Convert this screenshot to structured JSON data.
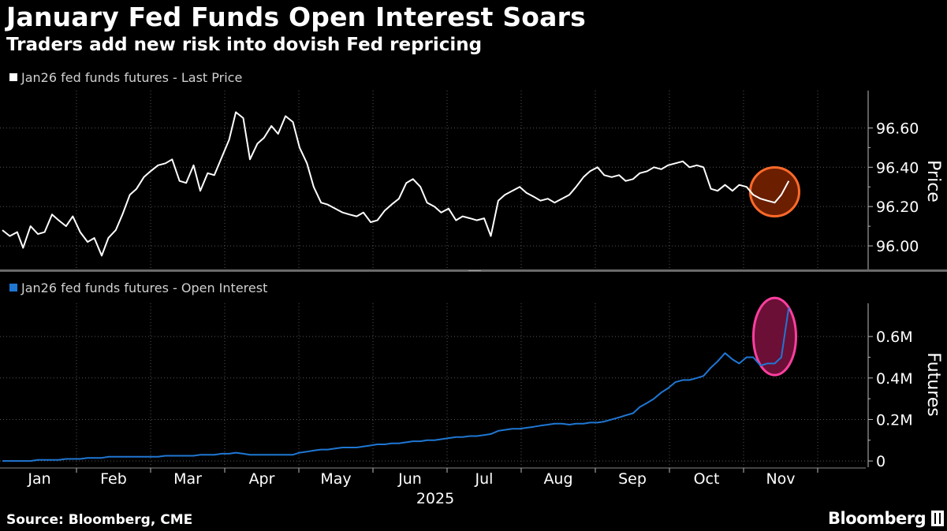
{
  "header": {
    "title": "January Fed Funds Open Interest Soars",
    "subtitle": "Traders add new risk into dovish Fed repricing"
  },
  "footer": {
    "source": "Source: Bloomberg, CME",
    "brand": "Bloomberg"
  },
  "colors": {
    "background": "#000000",
    "price_line": "#ffffff",
    "oi_line": "#1f77d4",
    "price_highlight_fill": "#6b1f00",
    "price_highlight_stroke": "#ff6a2a",
    "oi_highlight_fill": "#6b0f36",
    "oi_highlight_stroke": "#ff3fa0",
    "grid": "#555555"
  },
  "chart_data": [
    {
      "type": "line",
      "legend": "Jan26 fed funds futures - Last Price",
      "ylabel": "Price",
      "ylim": [
        95.88,
        96.79
      ],
      "yticks": [
        "96.00",
        "96.20",
        "96.40",
        "96.60"
      ],
      "ytick_values": [
        96.0,
        96.2,
        96.4,
        96.6
      ],
      "x_months": [
        "Jan",
        "Feb",
        "Mar",
        "Apr",
        "May",
        "Jun",
        "Jul",
        "Aug",
        "Sep",
        "Oct",
        "Nov"
      ],
      "x_year": "2025",
      "x": [
        0.0,
        0.1,
        0.2,
        0.28,
        0.38,
        0.48,
        0.57,
        0.67,
        0.76,
        0.86,
        0.95,
        1.05,
        1.15,
        1.24,
        1.34,
        1.43,
        1.53,
        1.62,
        1.72,
        1.81,
        1.91,
        2.0,
        2.1,
        2.2,
        2.29,
        2.39,
        2.48,
        2.58,
        2.67,
        2.77,
        2.86,
        2.96,
        3.06,
        3.15,
        3.25,
        3.34,
        3.44,
        3.53,
        3.63,
        3.72,
        3.82,
        3.92,
        4.01,
        4.11,
        4.2,
        4.3,
        4.39,
        4.49,
        4.59,
        4.68,
        4.78,
        4.87,
        4.97,
        5.06,
        5.16,
        5.25,
        5.35,
        5.45,
        5.54,
        5.64,
        5.73,
        5.83,
        5.92,
        6.02,
        6.12,
        6.21,
        6.31,
        6.4,
        6.5,
        6.59,
        6.69,
        6.78,
        6.88,
        6.98,
        7.07,
        7.17,
        7.26,
        7.36,
        7.45,
        7.55,
        7.65,
        7.74,
        7.84,
        7.93,
        8.03,
        8.12,
        8.22,
        8.32,
        8.41,
        8.51,
        8.6,
        8.7,
        8.79,
        8.89,
        8.98,
        9.08,
        9.18,
        9.27,
        9.37,
        9.46,
        9.56,
        9.65,
        9.75,
        9.85,
        9.94,
        10.04,
        10.13,
        10.23,
        10.32,
        10.42,
        10.51,
        10.61
      ],
      "y": [
        96.08,
        96.05,
        96.07,
        95.99,
        96.1,
        96.06,
        96.07,
        96.16,
        96.13,
        96.1,
        96.15,
        96.07,
        96.02,
        96.04,
        95.95,
        96.04,
        96.08,
        96.16,
        96.26,
        96.29,
        96.35,
        96.38,
        96.41,
        96.42,
        96.44,
        96.33,
        96.32,
        96.41,
        96.28,
        96.37,
        96.36,
        96.45,
        96.54,
        96.68,
        96.65,
        96.44,
        96.52,
        96.55,
        96.61,
        96.57,
        96.66,
        96.63,
        96.5,
        96.42,
        96.3,
        96.22,
        96.21,
        96.19,
        96.17,
        96.16,
        96.15,
        96.17,
        96.12,
        96.13,
        96.18,
        96.21,
        96.24,
        96.32,
        96.34,
        96.3,
        96.22,
        96.2,
        96.17,
        96.19,
        96.13,
        96.15,
        96.14,
        96.13,
        96.14,
        96.05,
        96.23,
        96.26,
        96.28,
        96.3,
        96.27,
        96.25,
        96.23,
        96.24,
        96.22,
        96.24,
        96.26,
        96.3,
        96.35,
        96.38,
        96.4,
        96.36,
        96.35,
        96.36,
        96.33,
        96.34,
        96.37,
        96.38,
        96.4,
        96.39,
        96.41,
        96.42,
        96.43,
        96.4,
        96.41,
        96.4,
        96.29,
        96.28,
        96.31,
        96.28,
        96.31,
        96.3,
        96.26,
        96.24,
        96.23,
        96.22,
        96.26,
        96.33
      ],
      "highlight_x": 10.42
    },
    {
      "type": "line",
      "legend": "Jan26 fed funds futures - Open Interest",
      "ylabel": "Futures",
      "ylim": [
        -0.03,
        0.76
      ],
      "yticks": [
        "0",
        "0.2M",
        "0.4M",
        "0.6M"
      ],
      "ytick_values": [
        0,
        0.2,
        0.4,
        0.6
      ],
      "x_months": [
        "Jan",
        "Feb",
        "Mar",
        "Apr",
        "May",
        "Jun",
        "Jul",
        "Aug",
        "Sep",
        "Oct",
        "Nov"
      ],
      "x_year": "2025",
      "x": [
        0.0,
        0.1,
        0.2,
        0.28,
        0.38,
        0.48,
        0.57,
        0.67,
        0.76,
        0.86,
        0.95,
        1.05,
        1.15,
        1.24,
        1.34,
        1.43,
        1.53,
        1.62,
        1.72,
        1.81,
        1.91,
        2.0,
        2.1,
        2.2,
        2.29,
        2.39,
        2.48,
        2.58,
        2.67,
        2.77,
        2.86,
        2.96,
        3.06,
        3.15,
        3.25,
        3.34,
        3.44,
        3.53,
        3.63,
        3.72,
        3.82,
        3.92,
        4.01,
        4.11,
        4.2,
        4.3,
        4.39,
        4.49,
        4.59,
        4.68,
        4.78,
        4.87,
        4.97,
        5.06,
        5.16,
        5.25,
        5.35,
        5.45,
        5.54,
        5.64,
        5.73,
        5.83,
        5.92,
        6.02,
        6.12,
        6.21,
        6.31,
        6.4,
        6.5,
        6.59,
        6.69,
        6.78,
        6.88,
        6.98,
        7.07,
        7.17,
        7.26,
        7.36,
        7.45,
        7.55,
        7.65,
        7.74,
        7.84,
        7.93,
        8.03,
        8.12,
        8.22,
        8.32,
        8.41,
        8.51,
        8.6,
        8.7,
        8.79,
        8.89,
        8.98,
        9.08,
        9.18,
        9.27,
        9.37,
        9.46,
        9.56,
        9.65,
        9.75,
        9.85,
        9.94,
        10.04,
        10.13,
        10.23,
        10.32,
        10.42,
        10.51,
        10.61
      ],
      "y": [
        0.0,
        0.0,
        0.0,
        0.0,
        0.0,
        0.005,
        0.005,
        0.005,
        0.005,
        0.01,
        0.01,
        0.01,
        0.015,
        0.015,
        0.015,
        0.02,
        0.02,
        0.02,
        0.02,
        0.02,
        0.02,
        0.02,
        0.02,
        0.025,
        0.025,
        0.025,
        0.025,
        0.025,
        0.03,
        0.03,
        0.03,
        0.035,
        0.035,
        0.04,
        0.035,
        0.03,
        0.03,
        0.03,
        0.03,
        0.03,
        0.03,
        0.03,
        0.04,
        0.045,
        0.05,
        0.055,
        0.055,
        0.06,
        0.065,
        0.065,
        0.065,
        0.07,
        0.075,
        0.08,
        0.08,
        0.085,
        0.085,
        0.09,
        0.095,
        0.095,
        0.1,
        0.1,
        0.105,
        0.11,
        0.115,
        0.115,
        0.12,
        0.12,
        0.125,
        0.13,
        0.145,
        0.15,
        0.155,
        0.155,
        0.16,
        0.165,
        0.17,
        0.175,
        0.18,
        0.18,
        0.175,
        0.18,
        0.18,
        0.185,
        0.185,
        0.19,
        0.2,
        0.21,
        0.22,
        0.23,
        0.26,
        0.28,
        0.3,
        0.33,
        0.35,
        0.38,
        0.39,
        0.39,
        0.4,
        0.41,
        0.45,
        0.48,
        0.52,
        0.49,
        0.47,
        0.5,
        0.5,
        0.46,
        0.47,
        0.47,
        0.5,
        0.74
      ],
      "highlight_x": 10.42
    }
  ]
}
